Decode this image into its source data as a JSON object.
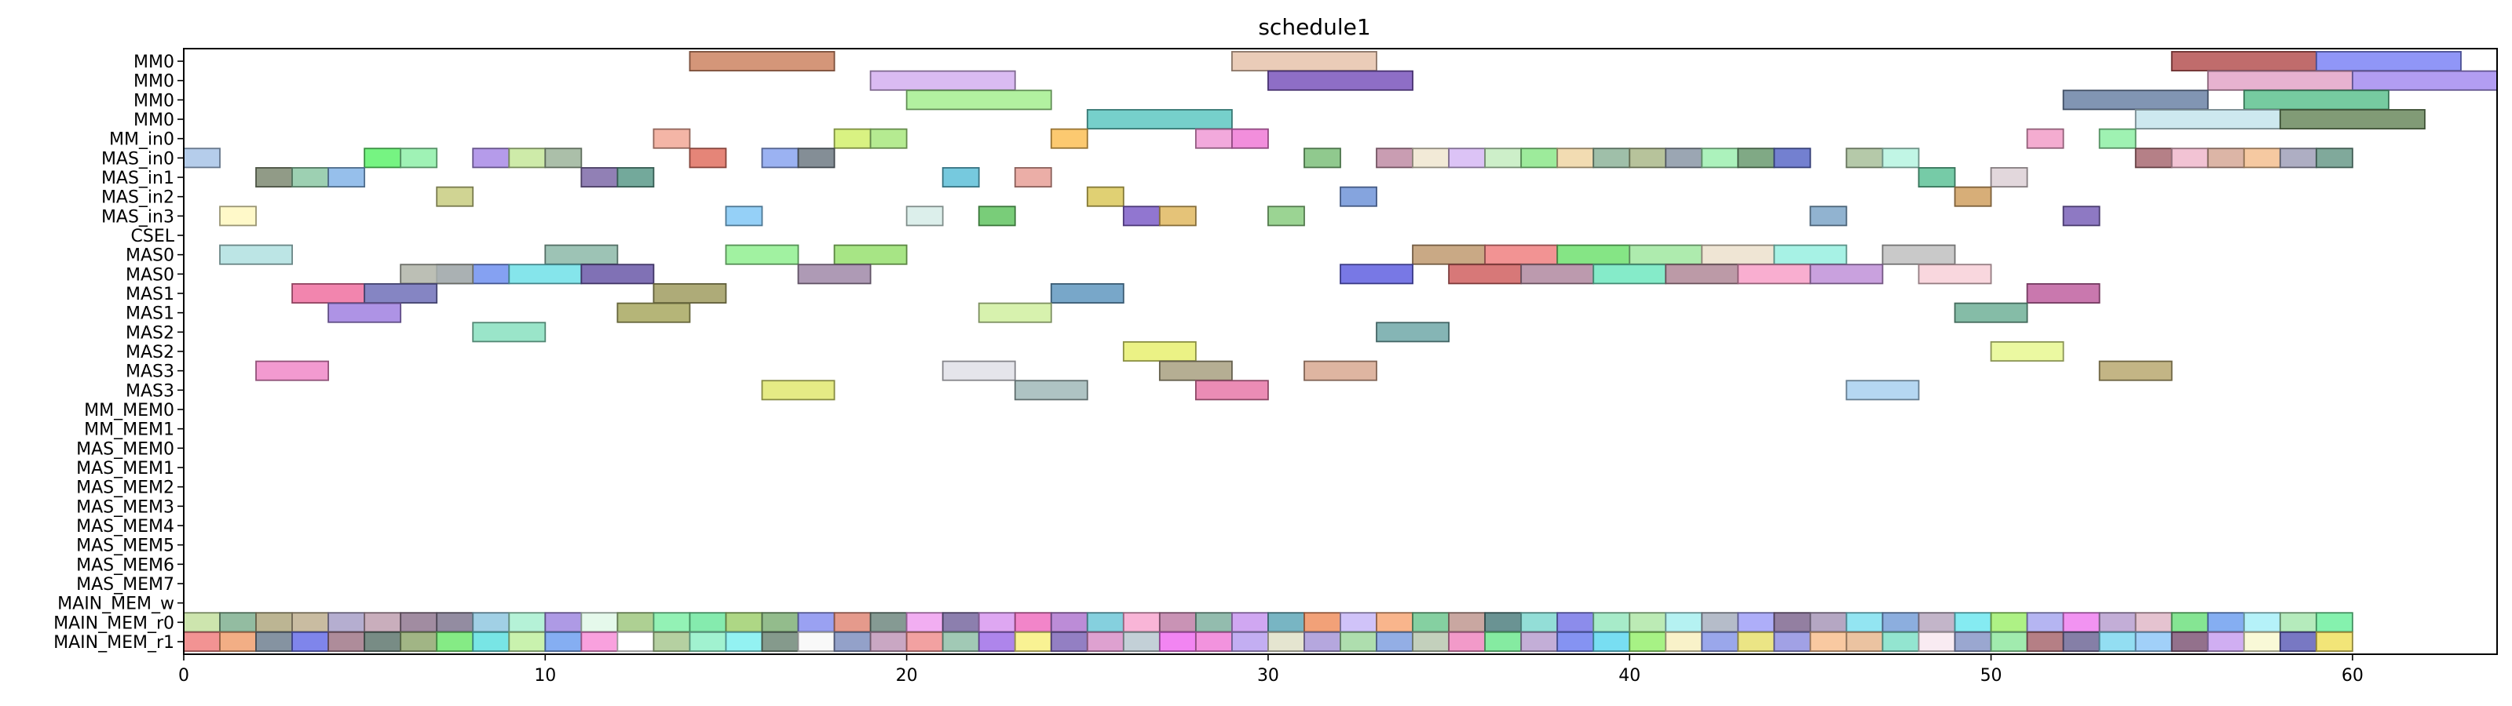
{
  "chart_data": {
    "type": "gantt",
    "title": "schedule1",
    "xlabel": "",
    "ylabel": "",
    "xlim": [
      0,
      64
    ],
    "xticks": [
      0,
      10,
      20,
      30,
      40,
      50,
      60
    ],
    "grid": false,
    "legend": "none",
    "rows": [
      "MM0",
      "MM0",
      "MM0",
      "MM0",
      "MM_in0",
      "MAS_in0",
      "MAS_in1",
      "MAS_in2",
      "MAS_in3",
      "CSEL",
      "MAS0",
      "MAS0",
      "MAS1",
      "MAS1",
      "MAS2",
      "MAS2",
      "MAS3",
      "MAS3",
      "MM_MEM0",
      "MM_MEM1",
      "MAS_MEM0",
      "MAS_MEM1",
      "MAS_MEM2",
      "MAS_MEM3",
      "MAS_MEM4",
      "MAS_MEM5",
      "MAS_MEM6",
      "MAS_MEM7",
      "MAIN_MEM_w",
      "MAIN_MEM_r0",
      "MAIN_MEM_r1"
    ],
    "tasks": [
      {
        "row": 0,
        "start": 14,
        "end": 18,
        "color": "#cd8462"
      },
      {
        "row": 0,
        "start": 29,
        "end": 33,
        "color": "#e6c3ab"
      },
      {
        "row": 0,
        "start": 55,
        "end": 59,
        "color": "#b55252"
      },
      {
        "row": 0,
        "start": 59,
        "end": 63,
        "color": "#7c84f6"
      },
      {
        "row": 1,
        "start": 19,
        "end": 23,
        "color": "#d3aff0"
      },
      {
        "row": 1,
        "start": 30,
        "end": 34,
        "color": "#7a55bc"
      },
      {
        "row": 1,
        "start": 56,
        "end": 60,
        "color": "#e3a4c8"
      },
      {
        "row": 1,
        "start": 60,
        "end": 64,
        "color": "#a48cf0"
      },
      {
        "row": 2,
        "start": 20,
        "end": 24,
        "color": "#a4ee8f"
      },
      {
        "row": 2,
        "start": 52,
        "end": 56,
        "color": "#6b82a6"
      },
      {
        "row": 2,
        "start": 57,
        "end": 61,
        "color": "#5ec28f"
      },
      {
        "row": 3,
        "start": 25,
        "end": 29,
        "color": "#5ec8c2"
      },
      {
        "row": 3,
        "start": 54,
        "end": 58,
        "color": "#c4e4ec"
      },
      {
        "row": 3,
        "start": 58,
        "end": 62,
        "color": "#6b8a5e"
      },
      {
        "row": 4,
        "start": 13,
        "end": 14,
        "color": "#f2a896"
      },
      {
        "row": 4,
        "start": 18,
        "end": 19,
        "color": "#d2f06c"
      },
      {
        "row": 4,
        "start": 19,
        "end": 20,
        "color": "#a8e87e"
      },
      {
        "row": 4,
        "start": 24,
        "end": 25,
        "color": "#fbc057"
      },
      {
        "row": 4,
        "start": 28,
        "end": 29,
        "color": "#f09ad6"
      },
      {
        "row": 4,
        "start": 29,
        "end": 30,
        "color": "#f07ad6"
      },
      {
        "row": 4,
        "start": 51,
        "end": 52,
        "color": "#f29ec8"
      },
      {
        "row": 4,
        "start": 53,
        "end": 54,
        "color": "#8ef0a4"
      },
      {
        "row": 5,
        "start": 0,
        "end": 1,
        "color": "#a8c4e8"
      },
      {
        "row": 5,
        "start": 5,
        "end": 6,
        "color": "#5ef26c"
      },
      {
        "row": 5,
        "start": 6,
        "end": 7,
        "color": "#8ef0a8"
      },
      {
        "row": 5,
        "start": 8,
        "end": 9,
        "color": "#a88ae6"
      },
      {
        "row": 5,
        "start": 9,
        "end": 10,
        "color": "#c6e89a"
      },
      {
        "row": 5,
        "start": 10,
        "end": 11,
        "color": "#9cb49a"
      },
      {
        "row": 5,
        "start": 14,
        "end": 15,
        "color": "#e07060"
      },
      {
        "row": 5,
        "start": 16,
        "end": 17,
        "color": "#8aa4f0"
      },
      {
        "row": 5,
        "start": 17,
        "end": 18,
        "color": "#6e7a84"
      },
      {
        "row": 5,
        "start": 31,
        "end": 32,
        "color": "#7cc07a"
      },
      {
        "row": 5,
        "start": 33,
        "end": 34,
        "color": "#c08ca4"
      },
      {
        "row": 5,
        "start": 34,
        "end": 35,
        "color": "#f0e6d0"
      },
      {
        "row": 5,
        "start": 35,
        "end": 36,
        "color": "#d6b8f4"
      },
      {
        "row": 5,
        "start": 36,
        "end": 37,
        "color": "#c4ecc0"
      },
      {
        "row": 5,
        "start": 37,
        "end": 38,
        "color": "#8ce88a"
      },
      {
        "row": 5,
        "start": 38,
        "end": 39,
        "color": "#f0d6a4"
      },
      {
        "row": 5,
        "start": 39,
        "end": 40,
        "color": "#8eb49a"
      },
      {
        "row": 5,
        "start": 40,
        "end": 41,
        "color": "#aab88a"
      },
      {
        "row": 5,
        "start": 41,
        "end": 42,
        "color": "#8a96a6"
      },
      {
        "row": 5,
        "start": 42,
        "end": 43,
        "color": "#9ef0b0"
      },
      {
        "row": 5,
        "start": 43,
        "end": 44,
        "color": "#6a9a70"
      },
      {
        "row": 5,
        "start": 44,
        "end": 45,
        "color": "#5a6ac8"
      },
      {
        "row": 5,
        "start": 46,
        "end": 47,
        "color": "#a8c09a"
      },
      {
        "row": 5,
        "start": 47,
        "end": 48,
        "color": "#b6f4e0"
      },
      {
        "row": 5,
        "start": 54,
        "end": 55,
        "color": "#a86a72"
      },
      {
        "row": 5,
        "start": 55,
        "end": 56,
        "color": "#f0b8cc"
      },
      {
        "row": 5,
        "start": 56,
        "end": 57,
        "color": "#d6a896"
      },
      {
        "row": 5,
        "start": 57,
        "end": 58,
        "color": "#f4c090"
      },
      {
        "row": 5,
        "start": 58,
        "end": 59,
        "color": "#a0a0b8"
      },
      {
        "row": 5,
        "start": 59,
        "end": 60,
        "color": "#6a9a8a"
      },
      {
        "row": 6,
        "start": 2,
        "end": 3,
        "color": "#7e8a72"
      },
      {
        "row": 6,
        "start": 3,
        "end": 4,
        "color": "#8cc8a4"
      },
      {
        "row": 6,
        "start": 4,
        "end": 5,
        "color": "#84b4e8"
      },
      {
        "row": 6,
        "start": 11,
        "end": 12,
        "color": "#7e6aa8"
      },
      {
        "row": 6,
        "start": 12,
        "end": 13,
        "color": "#5a9a8a"
      },
      {
        "row": 6,
        "start": 21,
        "end": 22,
        "color": "#5ec0d8"
      },
      {
        "row": 6,
        "start": 23,
        "end": 24,
        "color": "#e8a098"
      },
      {
        "row": 6,
        "start": 48,
        "end": 49,
        "color": "#5ec298"
      },
      {
        "row": 6,
        "start": 50,
        "end": 51,
        "color": "#ddd0d6"
      },
      {
        "row": 7,
        "start": 7,
        "end": 8,
        "color": "#c8cc80"
      },
      {
        "row": 7,
        "start": 25,
        "end": 26,
        "color": "#dac85a"
      },
      {
        "row": 7,
        "start": 32,
        "end": 33,
        "color": "#7094d8"
      },
      {
        "row": 7,
        "start": 49,
        "end": 50,
        "color": "#d0a060"
      },
      {
        "row": 8,
        "start": 1,
        "end": 2,
        "color": "#fff8c0"
      },
      {
        "row": 8,
        "start": 15,
        "end": 16,
        "color": "#82c8f6"
      },
      {
        "row": 8,
        "start": 20,
        "end": 21,
        "color": "#d6ece8"
      },
      {
        "row": 8,
        "start": 22,
        "end": 23,
        "color": "#62c462"
      },
      {
        "row": 8,
        "start": 26,
        "end": 27,
        "color": "#7e5ec8"
      },
      {
        "row": 8,
        "start": 27,
        "end": 28,
        "color": "#e0b860"
      },
      {
        "row": 8,
        "start": 30,
        "end": 31,
        "color": "#8acc80"
      },
      {
        "row": 8,
        "start": 45,
        "end": 46,
        "color": "#7ea6c8"
      },
      {
        "row": 8,
        "start": 52,
        "end": 53,
        "color": "#7a62b8"
      },
      {
        "row": 10,
        "start": 1,
        "end": 3,
        "color": "#b0e0e0"
      },
      {
        "row": 10,
        "start": 10,
        "end": 12,
        "color": "#8cb8a8"
      },
      {
        "row": 10,
        "start": 15,
        "end": 17,
        "color": "#90f090"
      },
      {
        "row": 10,
        "start": 18,
        "end": 20,
        "color": "#98e070"
      },
      {
        "row": 10,
        "start": 34,
        "end": 36,
        "color": "#c09a70"
      },
      {
        "row": 10,
        "start": 36,
        "end": 38,
        "color": "#f08080"
      },
      {
        "row": 10,
        "start": 38,
        "end": 40,
        "color": "#70e070"
      },
      {
        "row": 10,
        "start": 40,
        "end": 42,
        "color": "#a0e8a0"
      },
      {
        "row": 10,
        "start": 42,
        "end": 44,
        "color": "#ece0cc"
      },
      {
        "row": 10,
        "start": 44,
        "end": 46,
        "color": "#98f0e0"
      },
      {
        "row": 10,
        "start": 47,
        "end": 49,
        "color": "#c0c0c0"
      },
      {
        "row": 11,
        "start": 7,
        "end": 9,
        "color": "#7090f0"
      },
      {
        "row": 11,
        "start": 6,
        "end": 8,
        "color": "#b0b4a8"
      },
      {
        "row": 11,
        "start": 9,
        "end": 11,
        "color": "#70e0e8"
      },
      {
        "row": 11,
        "start": 11,
        "end": 13,
        "color": "#6a58a8"
      },
      {
        "row": 11,
        "start": 17,
        "end": 19,
        "color": "#a088a8"
      },
      {
        "row": 11,
        "start": 32,
        "end": 34,
        "color": "#6060e0"
      },
      {
        "row": 11,
        "start": 35,
        "end": 37,
        "color": "#d06060"
      },
      {
        "row": 11,
        "start": 37,
        "end": 39,
        "color": "#b088a0"
      },
      {
        "row": 11,
        "start": 39,
        "end": 41,
        "color": "#70e8c0"
      },
      {
        "row": 11,
        "start": 41,
        "end": 43,
        "color": "#b08898"
      },
      {
        "row": 11,
        "start": 43,
        "end": 45,
        "color": "#f8a0c8"
      },
      {
        "row": 11,
        "start": 45,
        "end": 47,
        "color": "#c090d8"
      },
      {
        "row": 11,
        "start": 48,
        "end": 50,
        "color": "#f8d0d8"
      },
      {
        "row": 12,
        "start": 3,
        "end": 5,
        "color": "#f070a0"
      },
      {
        "row": 12,
        "start": 5,
        "end": 7,
        "color": "#7070b8"
      },
      {
        "row": 12,
        "start": 13,
        "end": 15,
        "color": "#a09c60"
      },
      {
        "row": 12,
        "start": 24,
        "end": 26,
        "color": "#6098c0"
      },
      {
        "row": 12,
        "start": 51,
        "end": 53,
        "color": "#c060a0"
      },
      {
        "row": 13,
        "start": 4,
        "end": 6,
        "color": "#a080e0"
      },
      {
        "row": 13,
        "start": 12,
        "end": 14,
        "color": "#a8a860"
      },
      {
        "row": 13,
        "start": 22,
        "end": 24,
        "color": "#d0f0a0"
      },
      {
        "row": 13,
        "start": 49,
        "end": 51,
        "color": "#70b098"
      },
      {
        "row": 14,
        "start": 8,
        "end": 10,
        "color": "#88e0c0"
      },
      {
        "row": 14,
        "start": 33,
        "end": 35,
        "color": "#70a8a8"
      },
      {
        "row": 15,
        "start": 26,
        "end": 28,
        "color": "#e8f070"
      },
      {
        "row": 15,
        "start": 50,
        "end": 52,
        "color": "#e8f890"
      },
      {
        "row": 16,
        "start": 2,
        "end": 4,
        "color": "#f088c8"
      },
      {
        "row": 16,
        "start": 21,
        "end": 23,
        "color": "#e0e0e8"
      },
      {
        "row": 16,
        "start": 27,
        "end": 29,
        "color": "#a8a080"
      },
      {
        "row": 16,
        "start": 31,
        "end": 33,
        "color": "#d8a890"
      },
      {
        "row": 16,
        "start": 53,
        "end": 55,
        "color": "#b8a870"
      },
      {
        "row": 17,
        "start": 16,
        "end": 18,
        "color": "#e0e870"
      },
      {
        "row": 17,
        "start": 23,
        "end": 25,
        "color": "#a0b8b8"
      },
      {
        "row": 17,
        "start": 28,
        "end": 30,
        "color": "#e878a8"
      },
      {
        "row": 17,
        "start": 46,
        "end": 48,
        "color": "#a8d0f0"
      }
    ],
    "mem_rows": {
      "r0_row": 29,
      "r0_colors": [
        "#c4e0a0",
        "#80b090",
        "#b0a880",
        "#c0b090",
        "#a8a0c8",
        "#c0a0b0",
        "#907890",
        "#807890",
        "#90c8e0",
        "#a8f0d0",
        "#a088e0",
        "#e0f8e8",
        "#a0c880",
        "#80f0a8",
        "#70e8a0",
        "#a0d070",
        "#80b078",
        "#8890f0",
        "#e08878",
        "#708880",
        "#f0a0f0",
        "#7868a0",
        "#d898f0",
        "#f070c0",
        "#b078d0",
        "#70c8d8",
        "#f8a8d0",
        "#c080a8",
        "#80b0a0",
        "#c898f0",
        "#60a8b8",
        "#f09060",
        "#c8b8f8",
        "#f8a878",
        "#70c890",
        "#c09890",
        "#508080",
        "#80d8d0",
        "#7878e8",
        "#98e8c0",
        "#b0e8a8",
        "#a8f0f0",
        "#a8b0c0",
        "#a0a0f8",
        "#806890",
        "#a898b8",
        "#80e0f0",
        "#78a0d8",
        "#b8a8c0",
        "#70e8f0",
        "#a0f070",
        "#a8a8f0",
        "#f080f0",
        "#b8a0d0",
        "#e0b8c8",
        "#70e080",
        "#70a0f0",
        "#a8f0f8",
        "#a8e8b0",
        "#70f0a0"
      ],
      "r1_row": 30,
      "r1_colors": [
        "#f08080",
        "#f0a070",
        "#708090",
        "#6870e8",
        "#a07888",
        "#607870",
        "#90a870",
        "#70e870",
        "#60e0e0",
        "#c0f0a0",
        "#70a0f0",
        "#f890d8",
        "#ffffff",
        "#a8c890",
        "#90f0c8",
        "#80f0f0",
        "#708878",
        "#f8f8f8",
        "#8090c0",
        "#c098b8",
        "#f09090",
        "#90c0a8",
        "#a070e8",
        "#f8f080",
        "#8068b8",
        "#d890c8",
        "#b8c8d0",
        "#f070f0",
        "#f080d8",
        "#b8a0f0",
        "#e0e0c8",
        "#a898d8",
        "#a0d8a0",
        "#80a0e0",
        "#b8c8b0",
        "#f088c0",
        "#70e890",
        "#b8a0d0",
        "#7080f0",
        "#60d8f0",
        "#98f070",
        "#f8f0c0",
        "#8898e8",
        "#e8e070",
        "#9090e0",
        "#f8c090",
        "#e8b890",
        "#80e0c8",
        "#f8e8f0",
        "#8898c8",
        "#90e8a0",
        "#a86870",
        "#706898",
        "#80d8f0",
        "#90c8f8",
        "#805878",
        "#c8a0f0",
        "#f8f8d0",
        "#6060b8",
        "#f0e060"
      ]
    }
  }
}
